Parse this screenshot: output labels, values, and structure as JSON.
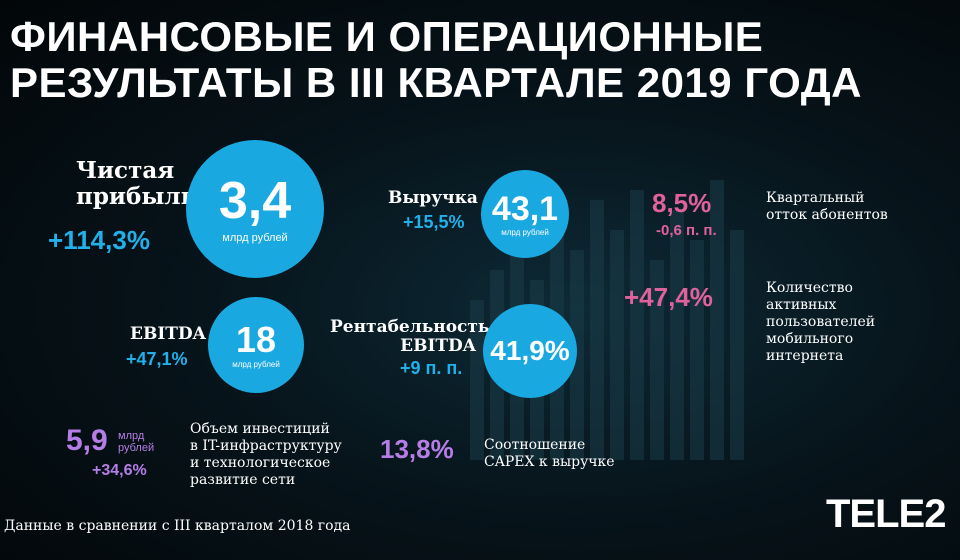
{
  "title": {
    "line1": "ФИНАНСОВЫЕ И ОПЕРАЦИОННЫЕ",
    "line2": "РЕЗУЛЬТАТЫ В III КВАРТАЛЕ 2019 ГОДА"
  },
  "net_profit": {
    "label_line1": "Чистая",
    "label_line2": "прибыль",
    "change": "+114,3%",
    "value": "3,4",
    "unit": "млрд рублей"
  },
  "revenue": {
    "label": "Выручка",
    "change": "+15,5%",
    "value": "43,1",
    "unit": "млрд рублей"
  },
  "ebitda": {
    "label": "EBITDA",
    "change": "+47,1%",
    "value": "18",
    "unit": "млрд рублей"
  },
  "ebitda_margin": {
    "label_line1": "Рентабельность",
    "label_line2": "EBITDA",
    "change": "+9 п. п.",
    "value": "41,9%"
  },
  "churn": {
    "value": "8,5%",
    "change": "-0,6 п. п.",
    "desc_line1": "Квартальный",
    "desc_line2": "отток абонентов"
  },
  "mobile_internet": {
    "value": "+47,4%",
    "desc_lines": [
      "Количество",
      "активных",
      "пользователей",
      "мобильного",
      "интернета"
    ]
  },
  "investment": {
    "value": "5,9",
    "unit_line1": "млрд",
    "unit_line2": "рублей",
    "change": "+34,6%",
    "desc_lines": [
      "Объем инвестиций",
      "в IT-инфраструктуру",
      "и технологическое",
      "развитие сети"
    ]
  },
  "capex": {
    "value": "13,8%",
    "desc_line1": "Соотношение",
    "desc_line2": "CAPEX к выручке"
  },
  "footnote": "Данные в сравнении с III кварталом 2018 года",
  "logo": "TELE2",
  "colors": {
    "circle": "#1aa8e0",
    "blue_text": "#21b0ea",
    "pink_text": "#e0629d",
    "purple_text": "#b57ee6"
  }
}
